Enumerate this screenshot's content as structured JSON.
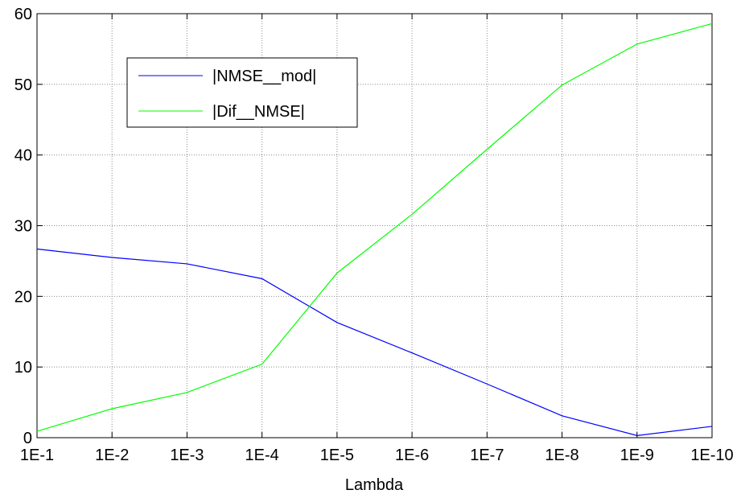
{
  "chart_data": {
    "type": "line",
    "title": "",
    "xlabel": "Lambda",
    "ylabel": "",
    "categories": [
      "1E-1",
      "1E-2",
      "1E-3",
      "1E-4",
      "1E-5",
      "1E-6",
      "1E-7",
      "1E-8",
      "1E-9",
      "1E-10"
    ],
    "ylim": [
      0,
      60
    ],
    "yticks": [
      0,
      10,
      20,
      30,
      40,
      50,
      60
    ],
    "grid": true,
    "legend_position": "top-left",
    "series": [
      {
        "name": "|NMSE__mod|",
        "color": "#0000ff",
        "values": [
          26.7,
          25.5,
          24.6,
          22.5,
          16.3,
          12.0,
          7.6,
          3.1,
          0.3,
          1.6
        ]
      },
      {
        "name": "|Dif__NMSE|",
        "color": "#00ff00",
        "values": [
          0.9,
          4.1,
          6.4,
          10.4,
          23.3,
          31.6,
          40.8,
          49.9,
          55.7,
          58.6
        ]
      }
    ]
  }
}
